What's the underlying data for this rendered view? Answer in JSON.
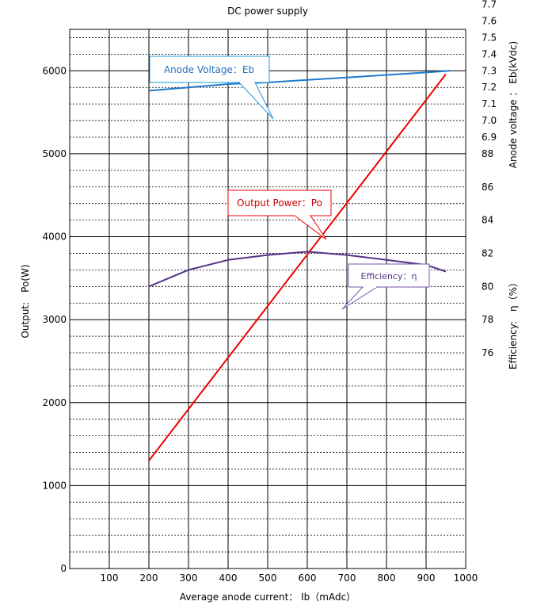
{
  "chart_data": {
    "type": "line",
    "title": "DC power supply",
    "xlabel": "Average anode current： Ib（mAdc）",
    "ylabel": "Output:　Po(W)",
    "y2label_voltage": "Anode voltage ： Eb(kVdc)",
    "y2label_efficiency": "Efficiency:　η（%）",
    "xlim": [
      0,
      1000
    ],
    "ylim": [
      0,
      6500
    ],
    "grid": true,
    "x_ticks": [
      "100",
      "200",
      "300",
      "400",
      "500",
      "600",
      "700",
      "800",
      "900",
      "1000"
    ],
    "y_ticks": [
      "0",
      "1000",
      "2000",
      "3000",
      "4000",
      "5000",
      "6000"
    ],
    "voltage_ticks": [
      "6.9",
      "7.0",
      "7.1",
      "7.2",
      "7.3",
      "7.4",
      "7.5",
      "7.6",
      "7.7"
    ],
    "efficiency_ticks": [
      "76",
      "78",
      "80",
      "82",
      "84",
      "86",
      "88"
    ],
    "series": [
      {
        "name": "Output Power：Po",
        "color": "#ee0000",
        "points": [
          [
            200,
            1300
          ],
          [
            950,
            5960
          ]
        ]
      },
      {
        "name": "Anode Voltage：Eb",
        "color": "#1f7acc",
        "points": [
          [
            200,
            7.18
          ],
          [
            300,
            7.2
          ],
          [
            400,
            7.22
          ],
          [
            500,
            7.23
          ],
          [
            600,
            7.245
          ],
          [
            700,
            7.26
          ],
          [
            800,
            7.275
          ],
          [
            900,
            7.29
          ],
          [
            960,
            7.3
          ]
        ]
      },
      {
        "name": "Efficiency：η",
        "color": "#553388",
        "points": [
          [
            200,
            80.0
          ],
          [
            300,
            81.0
          ],
          [
            400,
            81.6
          ],
          [
            500,
            81.9
          ],
          [
            600,
            82.1
          ],
          [
            700,
            81.9
          ],
          [
            800,
            81.6
          ],
          [
            900,
            81.3
          ],
          [
            950,
            80.9
          ]
        ]
      }
    ]
  }
}
